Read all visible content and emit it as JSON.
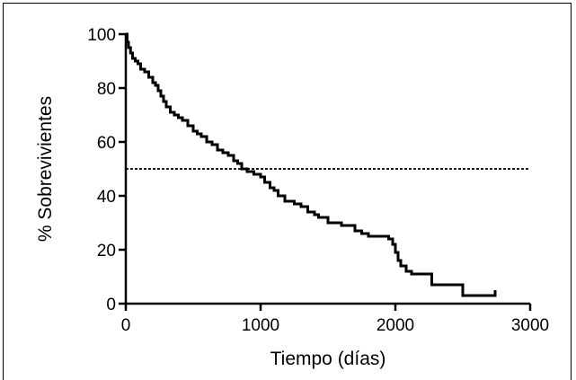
{
  "chart_data": {
    "type": "line",
    "subtype": "kaplan-meier step",
    "xlabel": "Tiempo (días)",
    "ylabel": "% Sobrevivientes",
    "xlim": [
      0,
      3000
    ],
    "ylim": [
      0,
      100
    ],
    "xticks": [
      "0",
      "1000",
      "2000",
      "3000"
    ],
    "yticks": [
      "0",
      "20",
      "40",
      "60",
      "80",
      "100"
    ],
    "grid": false,
    "legend": "none",
    "reference_line": {
      "y": 50,
      "style": "dotted",
      "x_range": [
        0,
        3000
      ]
    },
    "series": [
      {
        "x": [
          0,
          10,
          20,
          35,
          50,
          70,
          90,
          110,
          140,
          170,
          200,
          220,
          240,
          260,
          280,
          300,
          330,
          360,
          390,
          420,
          460,
          500,
          530,
          560,
          600,
          640,
          680,
          720,
          760,
          800,
          830,
          860,
          900,
          950,
          1000,
          1030,
          1070,
          1100,
          1130,
          1180,
          1250,
          1300,
          1350,
          1400,
          1430,
          1500,
          1600,
          1700,
          1750,
          1800,
          1950,
          1980,
          2000,
          2020,
          2040,
          2080,
          2120,
          2270,
          2500,
          2740
        ],
        "y": [
          100,
          97,
          95,
          93,
          91,
          90,
          89,
          87,
          86,
          84,
          82,
          81,
          79,
          77,
          75,
          73,
          71,
          70,
          69,
          68,
          66,
          64,
          63,
          62,
          60,
          59,
          57,
          56,
          55,
          53,
          52,
          50,
          49,
          48,
          47,
          45,
          43,
          42,
          40,
          38,
          37,
          36,
          34,
          33,
          32,
          30,
          29,
          27,
          26,
          25,
          24,
          22,
          19,
          16,
          14,
          12,
          11,
          7,
          3,
          5
        ]
      }
    ]
  }
}
